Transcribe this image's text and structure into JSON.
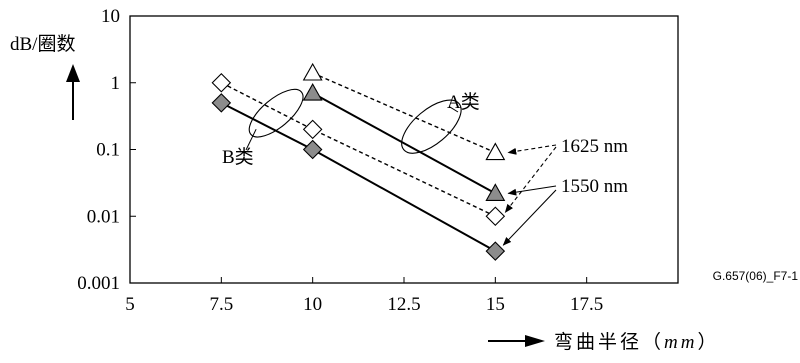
{
  "chart_data": {
    "type": "scatter",
    "y_scale": "log",
    "xlim": [
      5,
      20
    ],
    "ylim": [
      0.001,
      10
    ],
    "x_ticks": [
      "5",
      "7.5",
      "10",
      "12.5",
      "15",
      "17.5"
    ],
    "x_tick_values": [
      5,
      7.5,
      10,
      12.5,
      15,
      17.5
    ],
    "y_ticks": [
      "0.001",
      "0.01",
      "0.1",
      "1",
      "10"
    ],
    "y_tick_values": [
      0.001,
      0.01,
      0.1,
      1,
      10
    ],
    "ylabel": "dB/圈数",
    "xlabel": "弯曲半径（",
    "xlabel_unit": "mm",
    "xlabel_close": "）",
    "grid": false,
    "figure_id": "G.657(06)_F7-1",
    "series": [
      {
        "class": "A",
        "wavelength": "1625 nm",
        "marker": "triangle-open",
        "line": "dashed",
        "x": [
          10,
          15
        ],
        "y": [
          1.4,
          0.09
        ]
      },
      {
        "class": "A",
        "wavelength": "1550 nm",
        "marker": "triangle-filled",
        "line": "solid",
        "x": [
          10,
          15
        ],
        "y": [
          0.7,
          0.022
        ]
      },
      {
        "class": "B",
        "wavelength": "1625 nm",
        "marker": "diamond-open",
        "line": "dashed",
        "x": [
          7.5,
          10,
          15
        ],
        "y": [
          1.0,
          0.2,
          0.01
        ]
      },
      {
        "class": "B",
        "wavelength": "1550 nm",
        "marker": "diamond-filled",
        "line": "solid",
        "x": [
          7.5,
          10,
          15
        ],
        "y": [
          0.5,
          0.1,
          0.003
        ]
      }
    ],
    "annotations": [
      {
        "id": "class-a",
        "text": "A类",
        "target_class": "A",
        "ellipse_center": [
          13.25,
          0.22
        ]
      },
      {
        "id": "class-b",
        "text": "B类",
        "target_class": "B",
        "ellipse_center": [
          9.0,
          0.35
        ]
      }
    ],
    "wavelength_labels": [
      "1625 nm",
      "1550 nm"
    ]
  }
}
